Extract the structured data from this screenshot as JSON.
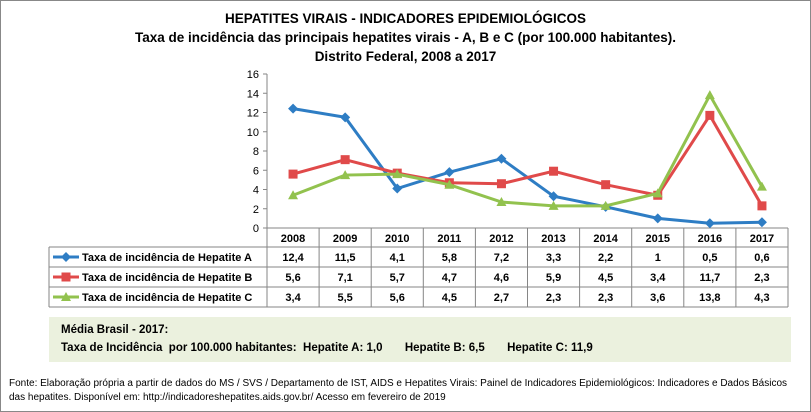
{
  "chart_data": {
    "type": "line",
    "title": "HEPATITES VIRAIS - INDICADORES EPIDEMIOLÓGICOS",
    "subtitle": "Taxa de incidência das principais hepatites virais - A, B e C (por 100.000 habitantes).",
    "subtitle2": "Distrito Federal, 2008 a 2017",
    "categories": [
      "2008",
      "2009",
      "2010",
      "2011",
      "2012",
      "2013",
      "2014",
      "2015",
      "2016",
      "2017"
    ],
    "ylim": [
      0,
      16
    ],
    "yticks": [
      "0",
      "2",
      "4",
      "6",
      "8",
      "10",
      "12",
      "14",
      "16"
    ],
    "grid": false,
    "legend": "data-table",
    "series": [
      {
        "name": "Taxa de incidência de Hepatite A",
        "color": "#2E7DC4",
        "marker": "diamond",
        "values": [
          12.4,
          11.5,
          4.1,
          5.8,
          7.2,
          3.3,
          2.2,
          1,
          0.5,
          0.6
        ],
        "labels": [
          "12,4",
          "11,5",
          "4,1",
          "5,8",
          "7,2",
          "3,3",
          "2,2",
          "1",
          "0,5",
          "0,6"
        ]
      },
      {
        "name": "Taxa de incidência de Hepatite B",
        "color": "#E04A4A",
        "marker": "square",
        "values": [
          5.6,
          7.1,
          5.7,
          4.7,
          4.6,
          5.9,
          4.5,
          3.4,
          11.7,
          2.3
        ],
        "labels": [
          "5,6",
          "7,1",
          "5,7",
          "4,7",
          "4,6",
          "5,9",
          "4,5",
          "3,4",
          "11,7",
          "2,3"
        ]
      },
      {
        "name": "Taxa de incidência de Hepatite C",
        "color": "#92C24E",
        "marker": "triangle",
        "values": [
          3.4,
          5.5,
          5.6,
          4.5,
          2.7,
          2.3,
          2.3,
          3.6,
          13.8,
          4.3
        ],
        "labels": [
          "3,4",
          "5,5",
          "5,6",
          "4,5",
          "2,7",
          "2,3",
          "2,3",
          "3,6",
          "13,8",
          "4,3"
        ]
      }
    ]
  },
  "note": {
    "line1": "Média Brasil - 2017:",
    "line2": "Taxa de Incidência  por 100.000 habitantes:  Hepatite A: 1,0       Hepatite B: 6,5       Hepatite C: 11,9",
    "background": "#EBF1DE"
  },
  "source": "Fonte: Elaboração própria a partir de dados do MS / SVS / Departamento de IST, AIDS e Hepatites Virais:  Painel de Indicadores Epidemiológicos: Indicadores e Dados Básicos das hepatites.  Disponível em: http://indicadoreshepatites.aids.gov.br/     Acesso em fevereiro de 2019"
}
